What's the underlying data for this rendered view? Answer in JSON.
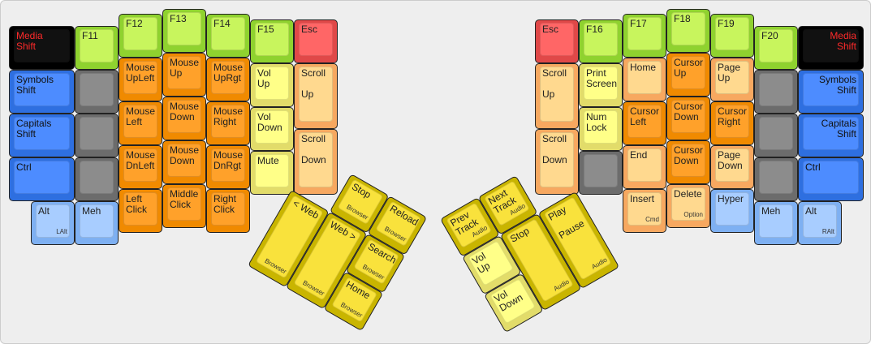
{
  "colors": {
    "black": {
      "rim": "#000000",
      "face": "#111111",
      "text": "#ff2a2a"
    },
    "green": {
      "rim": "#8fd22f",
      "face": "#c8f55d",
      "text": "#222222"
    },
    "red": {
      "rim": "#e04848",
      "face": "#ff6666",
      "text": "#222222"
    },
    "orange": {
      "rim": "#f08a00",
      "face": "#ffa12a",
      "text": "#222222"
    },
    "blue": {
      "rim": "#2e6fe0",
      "face": "#4d8cff",
      "text": "#111111"
    },
    "lightblue": {
      "rim": "#7eb0f2",
      "face": "#a8cdff",
      "text": "#222222"
    },
    "grey": {
      "rim": "#6c6c6c",
      "face": "#8c8c8c",
      "text": "#222222"
    },
    "paleyellow": {
      "rim": "#e2dc6a",
      "face": "#ffff88",
      "text": "#222222"
    },
    "peach": {
      "rim": "#f7a860",
      "face": "#ffd98f",
      "text": "#222222"
    },
    "yellow": {
      "rim": "#c9b500",
      "face": "#f9e23c",
      "text": "#222222"
    }
  },
  "keys": [
    {
      "label": "Media\nShift",
      "color": "black"
    },
    {
      "label": "Symbols\nShift",
      "color": "blue"
    },
    {
      "label": "Capitals\nShift",
      "color": "blue"
    },
    {
      "label": "Ctrl",
      "color": "blue"
    },
    {
      "label": "Alt",
      "sub": "LAlt",
      "color": "lightblue"
    },
    {
      "label": "F11",
      "color": "green"
    },
    {
      "label": "",
      "color": "grey"
    },
    {
      "label": "",
      "color": "grey"
    },
    {
      "label": "",
      "color": "grey"
    },
    {
      "label": "Meh",
      "color": "lightblue"
    },
    {
      "label": "F12",
      "color": "green"
    },
    {
      "label": "Mouse\nUpLeft",
      "color": "orange"
    },
    {
      "label": "Mouse\nLeft",
      "color": "orange"
    },
    {
      "label": "Mouse\nDnLeft",
      "color": "orange"
    },
    {
      "label": "Left\nClick",
      "color": "orange"
    },
    {
      "label": "F13",
      "color": "green"
    },
    {
      "label": "Mouse\nUp",
      "color": "orange"
    },
    {
      "label": "Mouse\nDown",
      "color": "orange"
    },
    {
      "label": "Mouse\nDown",
      "color": "orange"
    },
    {
      "label": "Middle\nClick",
      "color": "orange"
    },
    {
      "label": "F14",
      "color": "green"
    },
    {
      "label": "Mouse\nUpRgt",
      "color": "orange"
    },
    {
      "label": "Mouse\nRight",
      "color": "orange"
    },
    {
      "label": "Mouse\nDnRgt",
      "color": "orange"
    },
    {
      "label": "Right\nClick",
      "color": "orange"
    },
    {
      "label": "F15",
      "color": "green"
    },
    {
      "label": "Vol\nUp",
      "color": "paleyellow"
    },
    {
      "label": "Vol\nDown",
      "color": "paleyellow"
    },
    {
      "label": "Mute",
      "color": "paleyellow"
    },
    {
      "label": "Esc",
      "color": "red"
    },
    {
      "label": "Scroll\n\nUp",
      "color": "peach"
    },
    {
      "label": "Scroll\n\nDown",
      "color": "peach"
    },
    {
      "label": "Esc",
      "color": "red"
    },
    {
      "label": "Scroll\n\nUp",
      "color": "peach"
    },
    {
      "label": "Scroll\n\nDown",
      "color": "peach"
    },
    {
      "label": "F16",
      "color": "green"
    },
    {
      "label": "Print\nScreen",
      "color": "paleyellow"
    },
    {
      "label": "Num\nLock",
      "color": "paleyellow"
    },
    {
      "label": "",
      "color": "grey"
    },
    {
      "label": "F17",
      "color": "green"
    },
    {
      "label": "Home",
      "color": "peach"
    },
    {
      "label": "Cursor\nLeft",
      "color": "orange"
    },
    {
      "label": "End",
      "color": "peach"
    },
    {
      "label": "Insert",
      "sub": "Cmd",
      "color": "peach"
    },
    {
      "label": "F18",
      "color": "green"
    },
    {
      "label": "Cursor\nUp",
      "color": "orange"
    },
    {
      "label": "Cursor\nDown",
      "color": "orange"
    },
    {
      "label": "Cursor\nDown",
      "color": "orange"
    },
    {
      "label": "Delete",
      "sub": "Option",
      "color": "peach"
    },
    {
      "label": "F19",
      "color": "green"
    },
    {
      "label": "Page\nUp",
      "color": "peach"
    },
    {
      "label": "Cursor\nRight",
      "color": "orange"
    },
    {
      "label": "Page\nDown",
      "color": "peach"
    },
    {
      "label": "Hyper",
      "color": "lightblue"
    },
    {
      "label": "F20",
      "color": "green"
    },
    {
      "label": "",
      "color": "grey"
    },
    {
      "label": "",
      "color": "grey"
    },
    {
      "label": "",
      "color": "grey"
    },
    {
      "label": "Meh",
      "color": "lightblue"
    },
    {
      "label": "Media\nShift",
      "color": "black",
      "align": "right"
    },
    {
      "label": "Symbols\nShift",
      "color": "blue",
      "align": "right"
    },
    {
      "label": "Capitals\nShift",
      "color": "blue",
      "align": "right"
    },
    {
      "label": "Ctrl",
      "color": "blue"
    },
    {
      "label": "Alt",
      "sub": "RAlt",
      "color": "lightblue"
    },
    {
      "label": "Stop",
      "sub": "Browser",
      "color": "yellow"
    },
    {
      "label": "Reload",
      "sub": "Browser",
      "color": "yellow"
    },
    {
      "label": "< Web",
      "sub": "Browser",
      "color": "yellow",
      "align": "right"
    },
    {
      "label": "Web >",
      "sub": "Browser",
      "color": "yellow"
    },
    {
      "label": "Search",
      "sub": "Browser",
      "color": "yellow"
    },
    {
      "label": "Home",
      "sub": "Browser",
      "color": "yellow"
    },
    {
      "label": "Prev\nTrack",
      "sub": "Audio",
      "color": "yellow"
    },
    {
      "label": "Next\nTrack",
      "sub": "Audio",
      "color": "yellow"
    },
    {
      "label": "Vol\nUp",
      "color": "paleyellow"
    },
    {
      "label": "Vol\nDown",
      "color": "paleyellow"
    },
    {
      "label": "Stop",
      "sub": "Audio",
      "color": "yellow"
    },
    {
      "label": "Play\n\n        Pause",
      "sub": "Audio",
      "color": "yellow"
    }
  ]
}
